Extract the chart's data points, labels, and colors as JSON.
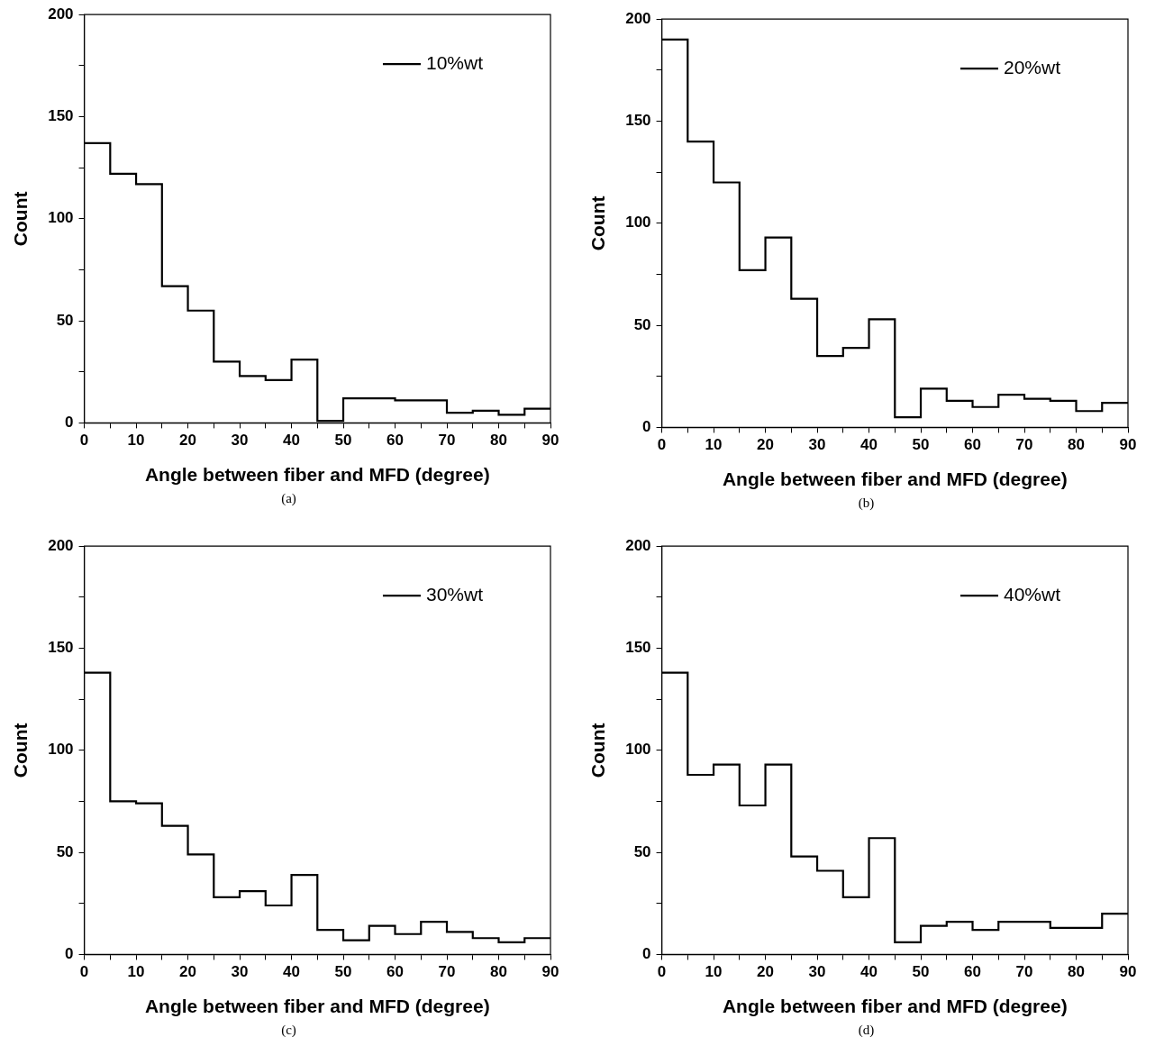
{
  "chart_data": [
    {
      "type": "histogram",
      "xlabel": "Angle between fiber and MFD (degree)",
      "ylabel": "Count",
      "annotations": [
        "(a)"
      ],
      "legend": "top right",
      "grid": false,
      "bins": [
        0,
        5,
        10,
        15,
        20,
        25,
        30,
        35,
        40,
        45,
        50,
        55,
        60,
        65,
        70,
        75,
        80,
        85,
        90
      ],
      "series": [
        {
          "name": "10%wt",
          "color": "#000000",
          "values": [
            137,
            122,
            117,
            67,
            55,
            30,
            23,
            21,
            31,
            1,
            12,
            12,
            11,
            11,
            5,
            6,
            4,
            7
          ]
        }
      ],
      "xlim": [
        0,
        90
      ],
      "xticks": [
        0,
        {
          "value": 5,
          "label": null
        },
        10,
        {
          "value": 15,
          "label": null
        },
        20,
        {
          "value": 25,
          "label": null
        },
        30,
        {
          "value": 35,
          "label": null
        },
        40,
        {
          "value": 45,
          "label": null
        },
        50,
        {
          "value": 55,
          "label": null
        },
        60,
        {
          "value": 65,
          "label": null
        },
        70,
        {
          "value": 75,
          "label": null
        },
        80,
        {
          "value": 85,
          "label": null
        },
        90
      ],
      "ylim": [
        0,
        200
      ],
      "yticks": [
        0,
        {
          "value": 25,
          "label": null
        },
        50,
        {
          "value": 75,
          "label": null
        },
        100,
        {
          "value": 125,
          "label": null
        },
        150,
        {
          "value": 175,
          "label": null
        },
        200
      ]
    },
    {
      "type": "histogram",
      "xlabel": "Angle between fiber and MFD (degree)",
      "ylabel": "Count",
      "annotations": [
        "(b)"
      ],
      "legend": "top right",
      "grid": false,
      "bins": [
        0,
        5,
        10,
        15,
        20,
        25,
        30,
        35,
        40,
        45,
        50,
        55,
        60,
        65,
        70,
        75,
        80,
        85,
        90
      ],
      "series": [
        {
          "name": "20%wt",
          "color": "#000000",
          "values": [
            190,
            140,
            120,
            77,
            93,
            63,
            35,
            39,
            53,
            5,
            19,
            13,
            10,
            16,
            14,
            13,
            8,
            12
          ]
        }
      ],
      "xlim": [
        0,
        90
      ],
      "xticks": [
        0,
        {
          "value": 5,
          "label": null
        },
        10,
        {
          "value": 15,
          "label": null
        },
        20,
        {
          "value": 25,
          "label": null
        },
        30,
        {
          "value": 35,
          "label": null
        },
        40,
        {
          "value": 45,
          "label": null
        },
        50,
        {
          "value": 55,
          "label": null
        },
        60,
        {
          "value": 65,
          "label": null
        },
        70,
        {
          "value": 75,
          "label": null
        },
        80,
        {
          "value": 85,
          "label": null
        },
        90
      ],
      "ylim": [
        0,
        200
      ],
      "yticks": [
        0,
        {
          "value": 25,
          "label": null
        },
        50,
        {
          "value": 75,
          "label": null
        },
        100,
        {
          "value": 125,
          "label": null
        },
        150,
        {
          "value": 175,
          "label": null
        },
        200
      ]
    },
    {
      "type": "histogram",
      "xlabel": "Angle between fiber and MFD (degree)",
      "ylabel": "Count",
      "annotations": [
        "(c)"
      ],
      "legend": "top right",
      "grid": false,
      "bins": [
        0,
        5,
        10,
        15,
        20,
        25,
        30,
        35,
        40,
        45,
        50,
        55,
        60,
        65,
        70,
        75,
        80,
        85,
        90
      ],
      "series": [
        {
          "name": "30%wt",
          "color": "#000000",
          "values": [
            138,
            75,
            74,
            63,
            49,
            28,
            31,
            24,
            39,
            12,
            7,
            14,
            10,
            16,
            11,
            8,
            6,
            8
          ]
        }
      ],
      "xlim": [
        0,
        90
      ],
      "xticks": [
        0,
        {
          "value": 5,
          "label": null
        },
        10,
        {
          "value": 15,
          "label": null
        },
        20,
        {
          "value": 25,
          "label": null
        },
        30,
        {
          "value": 35,
          "label": null
        },
        40,
        {
          "value": 45,
          "label": null
        },
        50,
        {
          "value": 55,
          "label": null
        },
        60,
        {
          "value": 65,
          "label": null
        },
        70,
        {
          "value": 75,
          "label": null
        },
        80,
        {
          "value": 85,
          "label": null
        },
        90
      ],
      "ylim": [
        0,
        200
      ],
      "yticks": [
        0,
        {
          "value": 25,
          "label": null
        },
        50,
        {
          "value": 75,
          "label": null
        },
        100,
        {
          "value": 125,
          "label": null
        },
        150,
        {
          "value": 175,
          "label": null
        },
        200
      ]
    },
    {
      "type": "histogram",
      "xlabel": "Angle between fiber and MFD (degree)",
      "ylabel": "Count",
      "annotations": [
        "(d)"
      ],
      "legend": "top right",
      "grid": false,
      "bins": [
        0,
        5,
        10,
        15,
        20,
        25,
        30,
        35,
        40,
        45,
        50,
        55,
        60,
        65,
        70,
        75,
        80,
        85,
        90
      ],
      "series": [
        {
          "name": "40%wt",
          "color": "#000000",
          "values": [
            138,
            88,
            93,
            73,
            93,
            48,
            41,
            28,
            57,
            6,
            14,
            16,
            12,
            16,
            16,
            13,
            13,
            20
          ]
        }
      ],
      "xlim": [
        0,
        90
      ],
      "xticks": [
        0,
        {
          "value": 5,
          "label": null
        },
        10,
        {
          "value": 15,
          "label": null
        },
        20,
        {
          "value": 25,
          "label": null
        },
        30,
        {
          "value": 35,
          "label": null
        },
        40,
        {
          "value": 45,
          "label": null
        },
        50,
        {
          "value": 55,
          "label": null
        },
        60,
        {
          "value": 65,
          "label": null
        },
        70,
        {
          "value": 75,
          "label": null
        },
        80,
        {
          "value": 85,
          "label": null
        },
        90
      ],
      "ylim": [
        0,
        200
      ],
      "yticks": [
        0,
        {
          "value": 25,
          "label": null
        },
        50,
        {
          "value": 75,
          "label": null
        },
        100,
        {
          "value": 125,
          "label": null
        },
        150,
        {
          "value": 175,
          "label": null
        },
        200
      ]
    }
  ]
}
